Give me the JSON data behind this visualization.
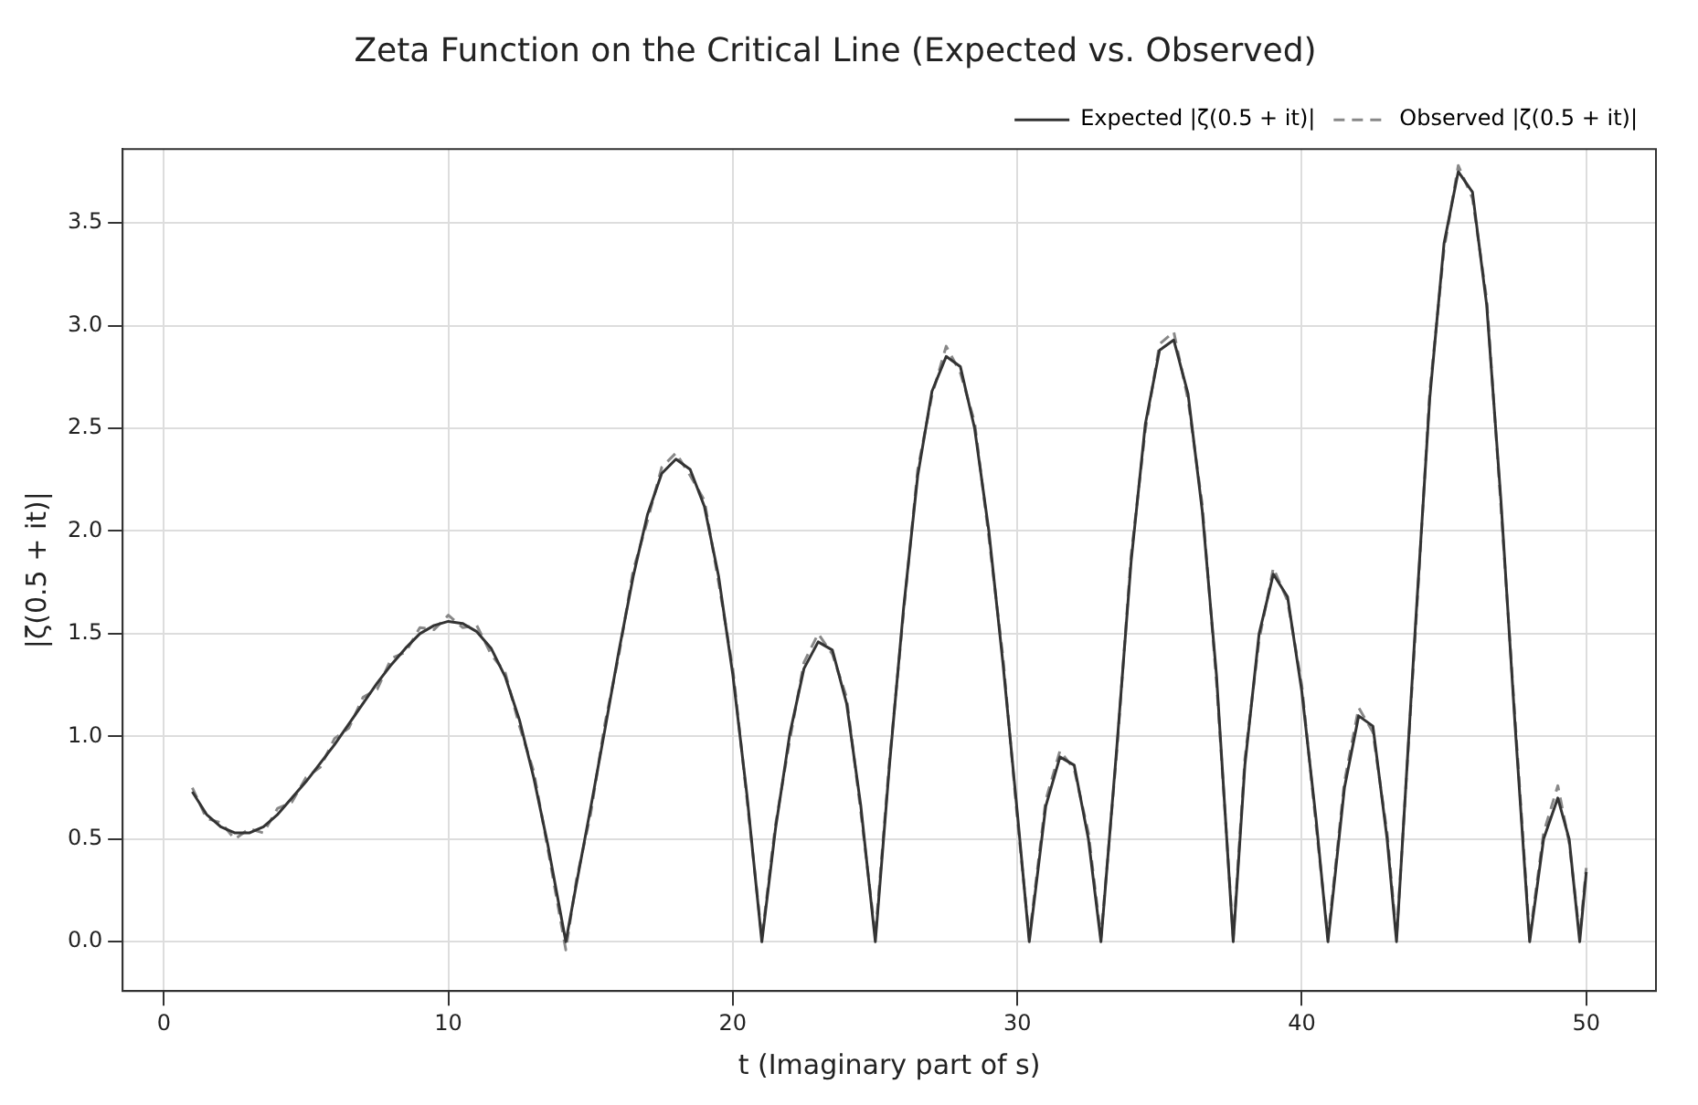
{
  "chart_data": {
    "type": "line",
    "title": "Zeta Function on the Critical Line (Expected vs. Observed)",
    "xlabel": "t (Imaginary part of s)",
    "ylabel": "|ζ(0.5 + it)|",
    "x": [
      1,
      1.5,
      2,
      2.5,
      3,
      3.5,
      4,
      4.5,
      5,
      5.5,
      6,
      6.5,
      7,
      7.5,
      8,
      8.5,
      9,
      9.5,
      10,
      10.5,
      11,
      11.5,
      12,
      12.5,
      13,
      13.5,
      14.13,
      14.5,
      15,
      15.5,
      16,
      16.5,
      17,
      17.5,
      18,
      18.5,
      19,
      19.5,
      20,
      20.5,
      21.02,
      21.5,
      22,
      22.5,
      23,
      23.5,
      24,
      24.5,
      25.01,
      25.5,
      26,
      26.5,
      27,
      27.5,
      28,
      28.5,
      29,
      29.5,
      30,
      30.42,
      31,
      31.5,
      32,
      32.5,
      32.94,
      33.5,
      34,
      34.5,
      35,
      35.5,
      36,
      36.5,
      37,
      37.59,
      38,
      38.5,
      39,
      39.5,
      40,
      40.5,
      40.92,
      41.5,
      42,
      42.5,
      43,
      43.33,
      44,
      44.5,
      45,
      45.5,
      46,
      46.5,
      47,
      47.5,
      48.01,
      48.5,
      49,
      49.4,
      49.77,
      50
    ],
    "series": [
      {
        "name": "Expected |ζ(0.5 + it)|",
        "color": "#333333",
        "line_style": "solid",
        "values": [
          0.73,
          0.62,
          0.56,
          0.53,
          0.53,
          0.56,
          0.62,
          0.7,
          0.78,
          0.87,
          0.96,
          1.06,
          1.16,
          1.26,
          1.35,
          1.43,
          1.5,
          1.54,
          1.56,
          1.55,
          1.51,
          1.43,
          1.29,
          1.08,
          0.8,
          0.47,
          0,
          0.28,
          0.65,
          1.03,
          1.42,
          1.78,
          2.08,
          2.28,
          2.35,
          2.3,
          2.12,
          1.78,
          1.3,
          0.71,
          0,
          0.55,
          1.01,
          1.33,
          1.46,
          1.42,
          1.16,
          0.66,
          0,
          0.85,
          1.62,
          2.27,
          2.68,
          2.85,
          2.8,
          2.5,
          2,
          1.35,
          0.63,
          0,
          0.66,
          0.9,
          0.86,
          0.5,
          0,
          0.95,
          1.85,
          2.52,
          2.88,
          2.93,
          2.67,
          2.1,
          1.3,
          0,
          0.86,
          1.5,
          1.79,
          1.68,
          1.22,
          0.6,
          0,
          0.75,
          1.1,
          1.05,
          0.5,
          0,
          1.55,
          2.65,
          3.4,
          3.75,
          3.65,
          3.1,
          2.15,
          1.05,
          0,
          0.5,
          0.7,
          0.5,
          0,
          0.34
        ]
      },
      {
        "name": "Observed |ζ(0.5 + it)|",
        "color": "#888888",
        "line_style": "dashed",
        "values": [
          0.75,
          0.6,
          0.58,
          0.5,
          0.55,
          0.53,
          0.65,
          0.68,
          0.8,
          0.85,
          0.99,
          1.04,
          1.19,
          1.23,
          1.38,
          1.41,
          1.53,
          1.52,
          1.59,
          1.53,
          1.54,
          1.4,
          1.31,
          1.05,
          0.83,
          0.45,
          -0.04,
          0.3,
          0.62,
          1.06,
          1.4,
          1.81,
          2.05,
          2.31,
          2.38,
          2.27,
          2.15,
          1.75,
          1.33,
          0.69,
          0.02,
          0.57,
          0.98,
          1.36,
          1.5,
          1.4,
          1.19,
          0.63,
          0.03,
          0.87,
          1.6,
          2.3,
          2.66,
          2.9,
          2.77,
          2.53,
          1.97,
          1.38,
          0.6,
          0.02,
          0.69,
          0.93,
          0.84,
          0.53,
          0.02,
          0.93,
          1.88,
          2.49,
          2.91,
          2.97,
          2.64,
          2.13,
          1.27,
          0.02,
          0.89,
          1.47,
          1.82,
          1.66,
          1.25,
          0.57,
          0.02,
          0.78,
          1.14,
          1.02,
          0.53,
          0.02,
          1.52,
          2.68,
          3.37,
          3.78,
          3.62,
          3.13,
          2.12,
          1.08,
          0.02,
          0.53,
          0.76,
          0.48,
          0.03,
          0.36
        ]
      }
    ],
    "xlim": [
      -1.45,
      52.45
    ],
    "xticks": [
      0,
      10,
      20,
      30,
      40,
      50
    ],
    "ylim": [
      -0.24,
      3.86
    ],
    "yticks": [
      {
        "value": 0,
        "label": "0.0"
      },
      {
        "value": 0.5,
        "label": "0.5"
      },
      {
        "value": 1,
        "label": "1.0"
      },
      {
        "value": 1.5,
        "label": "1.5"
      },
      {
        "value": 2,
        "label": "2.0"
      },
      {
        "value": 2.5,
        "label": "2.5"
      },
      {
        "value": 3,
        "label": "3.0"
      },
      {
        "value": 3.5,
        "label": "3.5"
      }
    ],
    "grid": true,
    "legend": "top right",
    "marker": "none"
  }
}
